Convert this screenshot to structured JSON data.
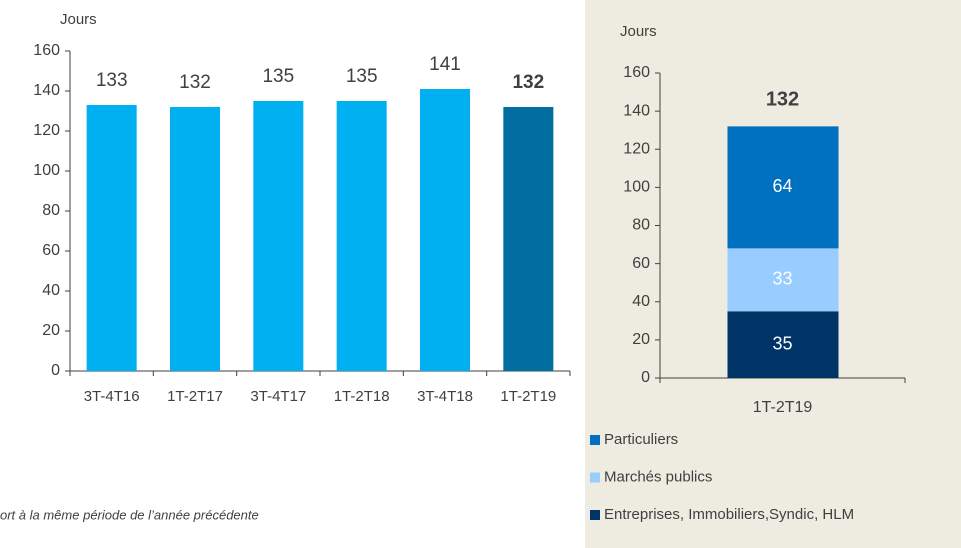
{
  "chart_data": [
    {
      "type": "bar",
      "y_label": "Jours",
      "categories": [
        "3T-4T16",
        "1T-2T17",
        "3T-4T17",
        "1T-2T18",
        "3T-4T18",
        "1T-2T19"
      ],
      "values": [
        133,
        132,
        135,
        135,
        141,
        132
      ],
      "colors": [
        "#00b0f0",
        "#00b0f0",
        "#00b0f0",
        "#00b0f0",
        "#00b0f0",
        "#006fa0"
      ],
      "bold": [
        false,
        false,
        false,
        false,
        false,
        true
      ],
      "ylim": [
        0,
        160
      ],
      "yticks": [
        0,
        20,
        40,
        60,
        80,
        100,
        120,
        140,
        160
      ]
    },
    {
      "type": "stacked_bar",
      "y_label": "Jours",
      "categories": [
        "1T-2T19"
      ],
      "total": [
        132
      ],
      "series": [
        {
          "name": "Entreprises, Immobiliers,Syndic, HLM",
          "color": "#003366",
          "values": [
            35
          ]
        },
        {
          "name": "Marchés publics",
          "color": "#99ccff",
          "values": [
            33
          ]
        },
        {
          "name": "Particuliers",
          "color": "#0070c0",
          "values": [
            64
          ]
        }
      ],
      "ylim": [
        0,
        160
      ],
      "yticks": [
        0,
        20,
        40,
        60,
        80,
        100,
        120,
        140,
        160
      ]
    }
  ],
  "footnote": "ort à la même période de l’année précédente"
}
